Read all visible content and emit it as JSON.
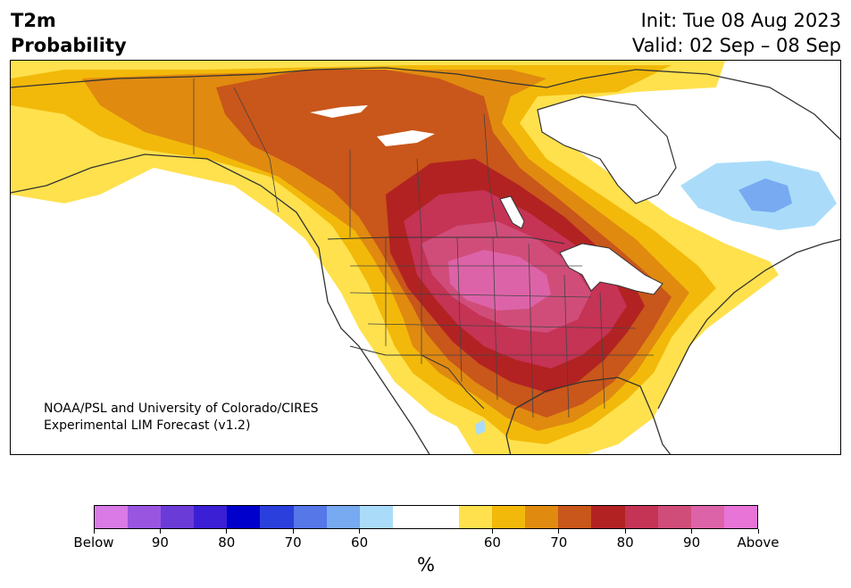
{
  "header": {
    "title_line1": "T2m",
    "title_line2": "Probability",
    "init": "Init: Tue 08 Aug 2023",
    "valid": "Valid: 02 Sep – 08 Sep"
  },
  "credit": {
    "line1": "NOAA/PSL and University of Colorado/CIRES",
    "line2": "Experimental LIM Forecast (v1.2)"
  },
  "colorbar": {
    "unit": "%",
    "colors": [
      "#d97ae6",
      "#9a55e0",
      "#6b3bd8",
      "#3b1fd4",
      "#0000cc",
      "#2a3fdc",
      "#5577e8",
      "#77aaf0",
      "#aadcfa",
      "#ffffff",
      "#ffffff",
      "#ffe14d",
      "#f2b90a",
      "#e08a10",
      "#c9561a",
      "#b22222",
      "#c53355",
      "#d04d7a",
      "#dd63a8",
      "#e874d8"
    ],
    "tick_labels": [
      "Below",
      "90",
      "80",
      "70",
      "60",
      "60",
      "70",
      "80",
      "90",
      "Above"
    ]
  },
  "map": {
    "region": "North America",
    "legend_categories": [
      "Below",
      "Above"
    ],
    "colors": {
      "ocean": "#ffffff",
      "land_neutral": "#ffffff",
      "above_60": "#ffe14d",
      "above_65": "#f2b90a",
      "above_70": "#e08a10",
      "above_75": "#c9561a",
      "above_80": "#b22222",
      "above_85": "#c53355",
      "above_90": "#d04d7a",
      "above_95": "#dd63a8",
      "below_60": "#aadcfa",
      "below_65": "#77aaf0",
      "borders": "#333333"
    }
  }
}
